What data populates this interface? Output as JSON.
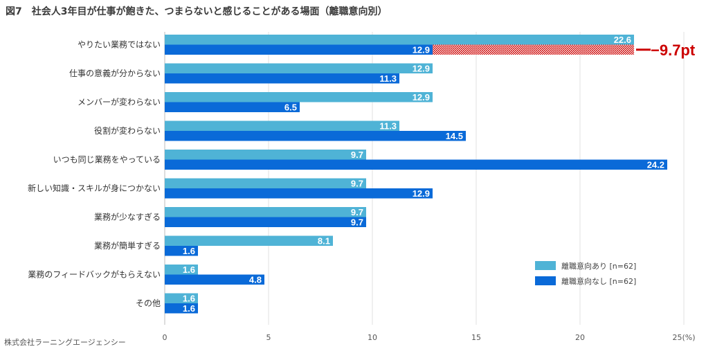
{
  "title": "図7　社会人3年目が仕事が飽きた、つまらないと感じることがある場面（離職意向別）",
  "source": "株式会社ラーニングエージェンシー",
  "chart_data": {
    "type": "bar",
    "orientation": "horizontal",
    "title": "図7　社会人3年目が仕事が飽きた、つまらないと感じることがある場面（離職意向別）",
    "categories": [
      "やりたい業務ではない",
      "仕事の意義が分からない",
      "メンバーが変わらない",
      "役割が変わらない",
      "いつも同じ業務をやっている",
      "新しい知識・スキルが身につかない",
      "業務が少なすぎる",
      "業務が簡単すぎる",
      "業務のフィードバックがもらえない",
      "その他"
    ],
    "highlight_category": "やりたい業務ではない",
    "series": [
      {
        "name": "離職意向あり [n=62]",
        "color": "#4fb3d6",
        "values": [
          22.6,
          12.9,
          12.9,
          11.3,
          9.7,
          9.7,
          9.7,
          8.1,
          1.6,
          1.6
        ]
      },
      {
        "name": "離職意向なし [n=62]",
        "color": "#0a6ad8",
        "values": [
          12.9,
          11.3,
          6.5,
          14.5,
          24.2,
          12.9,
          9.7,
          1.6,
          4.8,
          1.6
        ]
      }
    ],
    "xlim": [
      0,
      25
    ],
    "xticks": [
      "0",
      "5",
      "10",
      "15",
      "20",
      "25(%)"
    ],
    "xtick_values": [
      0,
      5,
      10,
      15,
      20,
      25
    ],
    "legend_position": "bottom-right",
    "annotation": {
      "text": "−9.7pt",
      "category": "やりたい業務ではない",
      "from": 12.9,
      "to": 22.6,
      "color": "#cc0000"
    }
  }
}
